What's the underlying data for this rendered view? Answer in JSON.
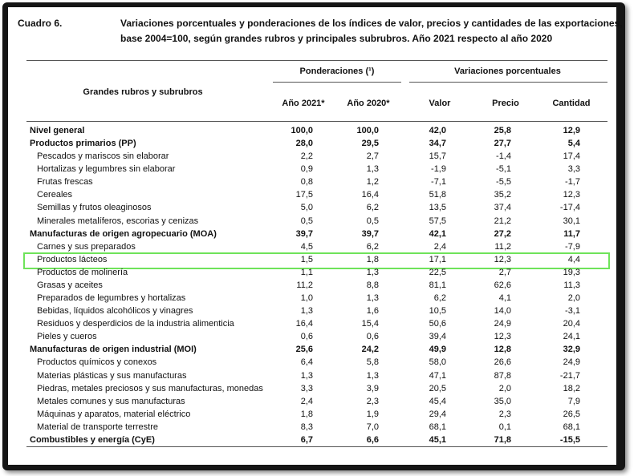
{
  "header": {
    "label": "Cuadro 6.",
    "title": [
      "Variaciones porcentuales y ponderaciones de los índices de valor, precios y cantidades de las exportaciones,",
      "base 2004=100, según grandes rubros y principales subrubros. Año 2021 respecto al año 2020"
    ]
  },
  "table": {
    "row_header": "Grandes rubros y subrubros",
    "column_groups": [
      "Ponderaciones (¹)",
      "Variaciones porcentuales"
    ],
    "columns": [
      "Año 2021*",
      "Año 2020*",
      "Valor",
      "Precio",
      "Cantidad"
    ],
    "total": {
      "label": "Nivel general",
      "values": [
        "100,0",
        "100,0",
        "42,0",
        "25,8",
        "12,9"
      ]
    },
    "groups": [
      {
        "label": "Productos primarios (PP)",
        "values": [
          "28,0",
          "29,5",
          "34,7",
          "27,7",
          "5,4"
        ],
        "rows": [
          {
            "label": "Pescados y mariscos sin elaborar",
            "values": [
              "2,2",
              "2,7",
              "15,7",
              "-1,4",
              "17,4"
            ]
          },
          {
            "label": "Hortalizas y legumbres sin elaborar",
            "values": [
              "0,9",
              "1,3",
              "-1,9",
              "-5,1",
              "3,3"
            ]
          },
          {
            "label": "Frutas frescas",
            "values": [
              "0,8",
              "1,2",
              "-7,1",
              "-5,5",
              "-1,7"
            ]
          },
          {
            "label": "Cereales",
            "values": [
              "17,5",
              "16,4",
              "51,8",
              "35,2",
              "12,3"
            ]
          },
          {
            "label": "Semillas y frutos oleaginosos",
            "values": [
              "5,0",
              "6,2",
              "13,5",
              "37,4",
              "-17,4"
            ]
          },
          {
            "label": "Minerales metalíferos, escorias y cenizas",
            "values": [
              "0,5",
              "0,5",
              "57,5",
              "21,2",
              "30,1"
            ]
          }
        ]
      },
      {
        "label": "Manufacturas de origen agropecuario (MOA)",
        "values": [
          "39,7",
          "39,7",
          "42,1",
          "27,2",
          "11,7"
        ],
        "rows": [
          {
            "label": "Carnes y sus preparados",
            "values": [
              "4,5",
              "6,2",
              "2,4",
              "11,2",
              "-7,9"
            ]
          },
          {
            "label": "Productos lácteos",
            "values": [
              "1,5",
              "1,8",
              "17,1",
              "12,3",
              "4,4"
            ]
          },
          {
            "label": "Productos de molinería",
            "values": [
              "1,1",
              "1,3",
              "22,5",
              "2,7",
              "19,3"
            ]
          },
          {
            "label": "Grasas y aceites",
            "values": [
              "11,2",
              "8,8",
              "81,1",
              "62,6",
              "11,3"
            ]
          },
          {
            "label": "Preparados de legumbres y hortalizas",
            "values": [
              "1,0",
              "1,3",
              "6,2",
              "4,1",
              "2,0"
            ]
          },
          {
            "label": "Bebidas, líquidos alcohólicos y vinagres",
            "values": [
              "1,3",
              "1,6",
              "10,5",
              "14,0",
              "-3,1"
            ]
          },
          {
            "label": "Residuos y desperdicios de la industria alimenticia",
            "values": [
              "16,4",
              "15,4",
              "50,6",
              "24,9",
              "20,4"
            ]
          },
          {
            "label": "Pieles y cueros",
            "values": [
              "0,6",
              "0,6",
              "39,4",
              "12,3",
              "24,1"
            ]
          }
        ]
      },
      {
        "label": "Manufacturas de origen industrial (MOI)",
        "values": [
          "25,6",
          "24,2",
          "49,9",
          "12,8",
          "32,9"
        ],
        "rows": [
          {
            "label": "Productos químicos y conexos",
            "values": [
              "6,4",
              "5,8",
              "58,0",
              "26,6",
              "24,9"
            ]
          },
          {
            "label": "Materias plásticas y sus manufacturas",
            "values": [
              "1,3",
              "1,3",
              "47,1",
              "87,8",
              "-21,7"
            ]
          },
          {
            "label": "Piedras, metales preciosos y sus manufacturas, monedas",
            "values": [
              "3,3",
              "3,9",
              "20,5",
              "2,0",
              "18,2"
            ]
          },
          {
            "label": "Metales comunes y sus manufacturas",
            "values": [
              "2,4",
              "2,3",
              "45,4",
              "35,0",
              "7,9"
            ]
          },
          {
            "label": "Máquinas y aparatos, material eléctrico",
            "values": [
              "1,8",
              "1,9",
              "29,4",
              "2,3",
              "26,5"
            ]
          },
          {
            "label": "Material de transporte terrestre",
            "values": [
              "8,3",
              "7,0",
              "68,1",
              "0,1",
              "68,1"
            ]
          }
        ]
      },
      {
        "label": "Combustibles y energía (CyE)",
        "values": [
          "6,7",
          "6,6",
          "45,1",
          "71,8",
          "-15,5"
        ],
        "rows": []
      }
    ]
  }
}
